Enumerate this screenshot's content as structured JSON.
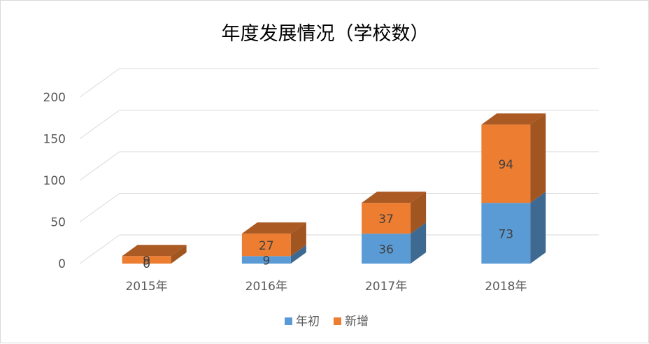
{
  "chart_data": {
    "type": "bar",
    "stacked": true,
    "three_d": true,
    "title": "年度发展情况（学校数）",
    "categories": [
      "2015年",
      "2016年",
      "2017年",
      "2018年"
    ],
    "series": [
      {
        "name": "年初",
        "values": [
          0,
          9,
          36,
          73
        ],
        "color": "#5b9bd5"
      },
      {
        "name": "新增",
        "values": [
          9,
          27,
          37,
          94
        ],
        "color": "#ed7d31"
      }
    ],
    "ylim": [
      0,
      200
    ],
    "yticks": [
      0,
      50,
      100,
      150,
      200
    ],
    "grid": true,
    "legend_position": "bottom"
  }
}
